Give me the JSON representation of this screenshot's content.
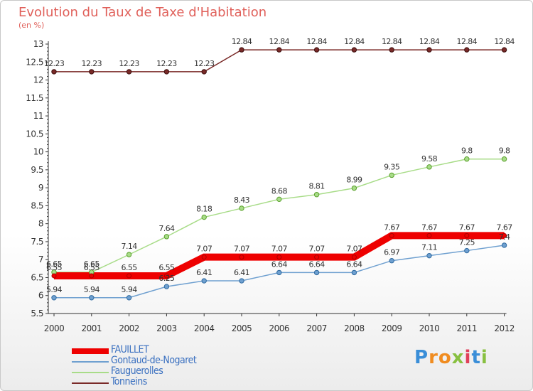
{
  "header": {
    "title": "Evolution du Taux de Taxe d'Habitation",
    "unit": "(en %)"
  },
  "logo": {
    "text": "Proxiti",
    "letter_colors": [
      "#3a8ed8",
      "#f08c20",
      "#f08c20",
      "#88c040",
      "#e0405a",
      "#3a8ed8",
      "#88c040"
    ]
  },
  "chart_data": {
    "type": "line",
    "title": "Evolution du Taux de Taxe d'Habitation",
    "ylabel": "(en %)",
    "xlabel": "",
    "x": [
      "2000",
      "2001",
      "2002",
      "2003",
      "2004",
      "2005",
      "2006",
      "2007",
      "2008",
      "2009",
      "2010",
      "2011",
      "2012"
    ],
    "ylim": [
      5.5,
      13
    ],
    "yticks": [
      "5.5",
      "6",
      "6.5",
      "7",
      "7.5",
      "8",
      "8.5",
      "9",
      "9.5",
      "10",
      "10.5",
      "11",
      "11.5",
      "12",
      "12.5",
      "13"
    ],
    "grid": false,
    "legend": "bottom-left",
    "series": [
      {
        "name": "FAUILLET",
        "color": "#ee0000",
        "values": [
          6.55,
          6.55,
          6.55,
          6.55,
          7.07,
          7.07,
          7.07,
          7.07,
          7.07,
          7.67,
          7.67,
          7.67,
          7.67
        ],
        "labels": [
          "6.55",
          "6.55",
          "6.55",
          "6.55",
          "7.07",
          "7.07",
          "7.07",
          "7.07",
          "7.07",
          "7.67",
          "7.67",
          "7.67",
          "7.67"
        ]
      },
      {
        "name": "Gontaud-de-Nogaret",
        "color": "#6fa0d0",
        "values": [
          5.94,
          5.94,
          5.94,
          6.25,
          6.41,
          6.41,
          6.64,
          6.64,
          6.64,
          6.97,
          7.11,
          7.25,
          7.4
        ],
        "labels": [
          "5.94",
          "5.94",
          "5.94",
          "6.25",
          "6.41",
          "6.41",
          "6.64",
          "6.64",
          "6.64",
          "6.97",
          "7.11",
          "7.25",
          "7.4"
        ]
      },
      {
        "name": "Fauguerolles",
        "color": "#a8dc88",
        "values": [
          6.65,
          6.65,
          7.14,
          7.64,
          8.18,
          8.43,
          8.68,
          8.81,
          8.99,
          9.35,
          9.58,
          9.8,
          9.8
        ],
        "labels": [
          "6.65",
          "6.65",
          "7.14",
          "7.64",
          "8.18",
          "8.43",
          "8.68",
          "8.81",
          "8.99",
          "9.35",
          "9.58",
          "9.8",
          "9.8"
        ]
      },
      {
        "name": "Tonneins",
        "color": "#7a2a28",
        "values": [
          12.23,
          12.23,
          12.23,
          12.23,
          12.23,
          12.84,
          12.84,
          12.84,
          12.84,
          12.84,
          12.84,
          12.84,
          12.84
        ],
        "labels": [
          "12.23",
          "12.23",
          "12.23",
          "12.23",
          "12.23",
          "12.84",
          "12.84",
          "12.84",
          "12.84",
          "12.84",
          "12.84",
          "12.84",
          "12.84"
        ]
      }
    ]
  }
}
